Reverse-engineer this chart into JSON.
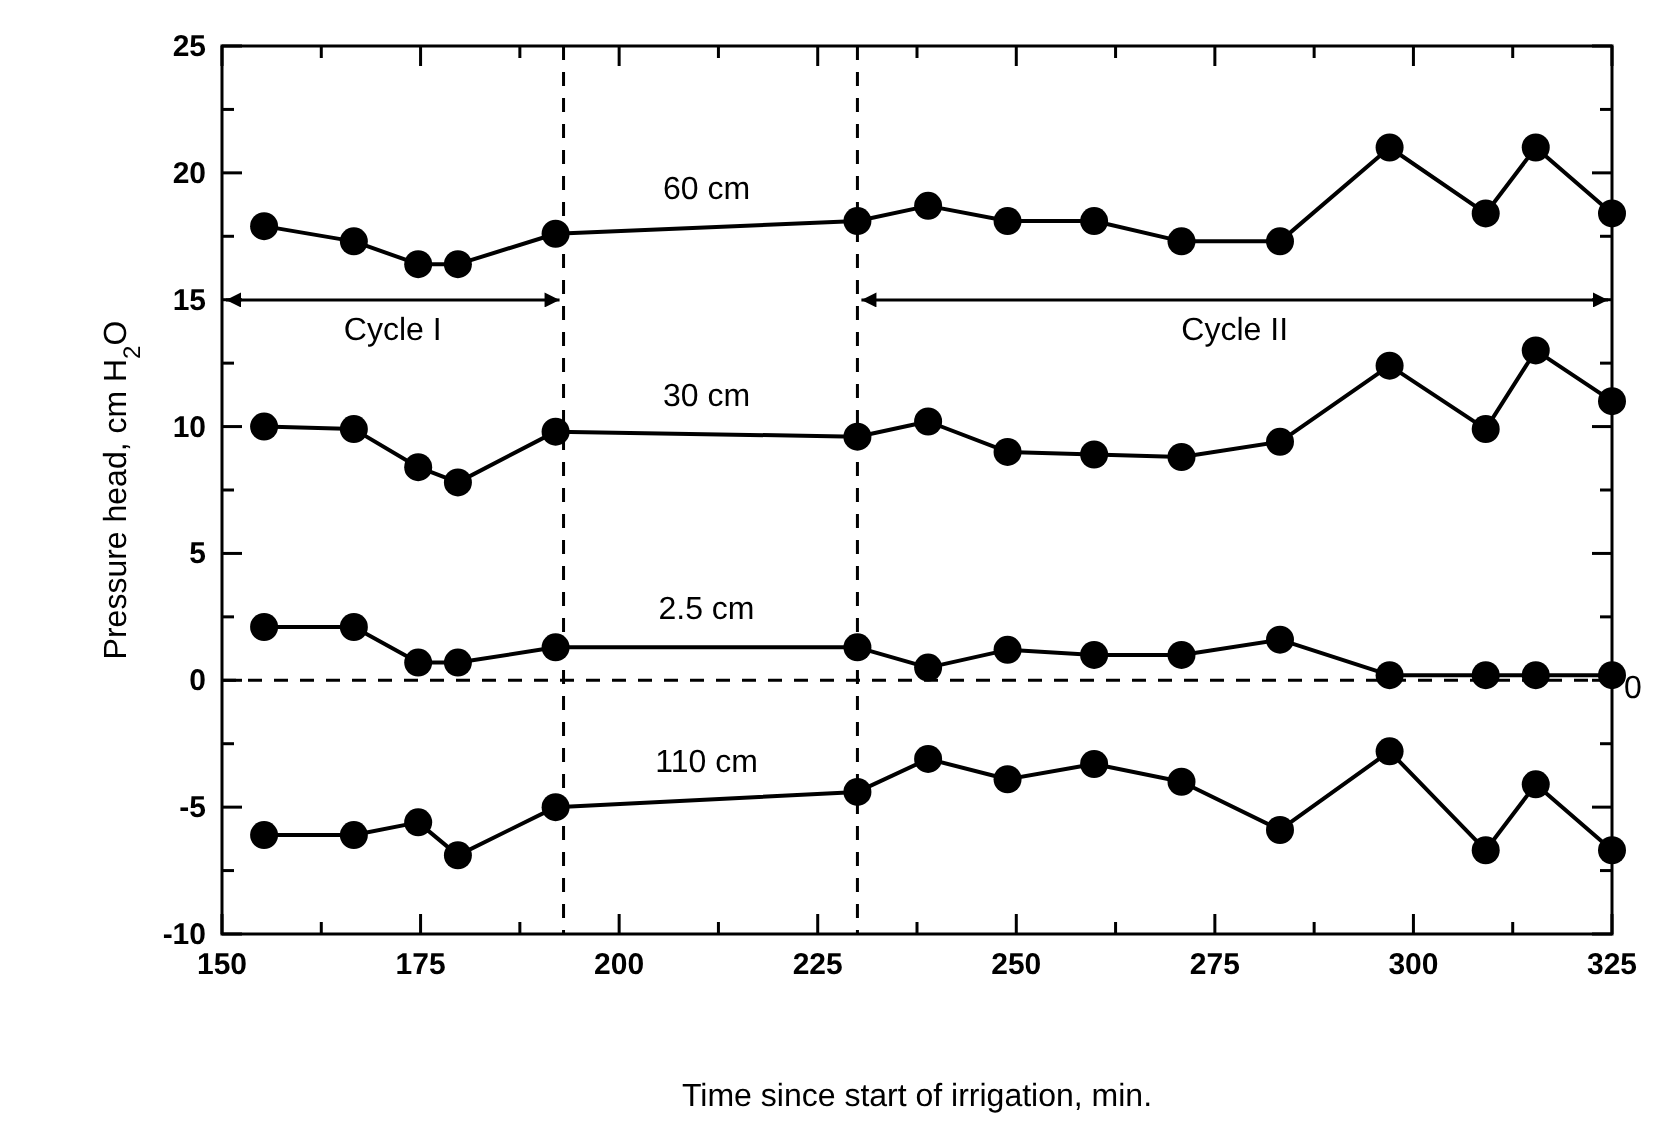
{
  "chart_data": {
    "type": "line",
    "xlabel": "Time since start of irrigation, min.",
    "ylabel": "Pressure head, cm H$_{2}$O",
    "xlim": [
      150,
      325
    ],
    "ylim": [
      -10,
      25
    ],
    "xticks": [
      150,
      {
        "value": 162.5,
        "label": null
      },
      175,
      {
        "value": 187.5,
        "label": null
      },
      200,
      {
        "value": 212.5,
        "label": null
      },
      225,
      {
        "value": 237.5,
        "label": null
      },
      250,
      {
        "value": 262.5,
        "label": null
      },
      275,
      {
        "value": 287.5,
        "label": null
      },
      300,
      {
        "value": 312.5,
        "label": null
      },
      325
    ],
    "yticks": [
      -10,
      {
        "value": -7.5,
        "label": null
      },
      -5,
      {
        "value": -2.5,
        "label": null
      },
      0,
      {
        "value": 2.5,
        "label": null
      },
      5,
      {
        "value": 7.5,
        "label": null
      },
      10,
      {
        "value": 12.5,
        "label": null
      },
      15,
      {
        "value": 17.5,
        "label": null
      },
      20,
      {
        "value": 22.5,
        "label": null
      },
      25
    ],
    "x": [
      155.3,
      166.6,
      174.7,
      179.7,
      192,
      230,
      238.9,
      248.9,
      259.8,
      270.8,
      283.2,
      297,
      309.1,
      315.4,
      325
    ],
    "series": [
      {
        "name": "60 cm",
        "color": "#000000",
        "values": [
          17.9,
          17.3,
          16.4,
          16.4,
          17.6,
          18.1,
          18.7,
          18.1,
          18.1,
          17.3,
          17.3,
          21.0,
          18.4,
          21.0,
          18.4
        ]
      },
      {
        "name": "30 cm",
        "color": "#000000",
        "values": [
          10.0,
          9.9,
          8.4,
          7.8,
          9.8,
          9.6,
          10.2,
          9.0,
          8.9,
          8.8,
          9.4,
          12.4,
          9.9,
          13.0,
          11.0
        ]
      },
      {
        "name": "2.5 cm",
        "color": "#000000",
        "values": [
          2.1,
          2.1,
          0.7,
          0.7,
          1.3,
          1.3,
          0.5,
          1.2,
          1.0,
          1.0,
          1.6,
          0.2,
          0.2,
          0.2,
          0.2
        ]
      },
      {
        "name": "110 cm",
        "color": "#000000",
        "values": [
          -6.1,
          -6.1,
          -5.6,
          -6.9,
          -5.0,
          -4.4,
          -3.1,
          -3.9,
          -3.3,
          -4.0,
          -5.9,
          -2.8,
          -6.7,
          -4.1,
          -6.7
        ]
      }
    ],
    "marker": "circle",
    "line_style": "solid",
    "ref_lines": [
      {
        "axis": "x",
        "value": 193,
        "line_style": "dashed"
      },
      {
        "axis": "x",
        "value": 230,
        "line_style": "dashed"
      },
      {
        "axis": "y",
        "value": 0,
        "label": "0",
        "line_style": "dashed"
      }
    ],
    "annotations": [
      "Cycle I",
      "Cycle II"
    ]
  }
}
